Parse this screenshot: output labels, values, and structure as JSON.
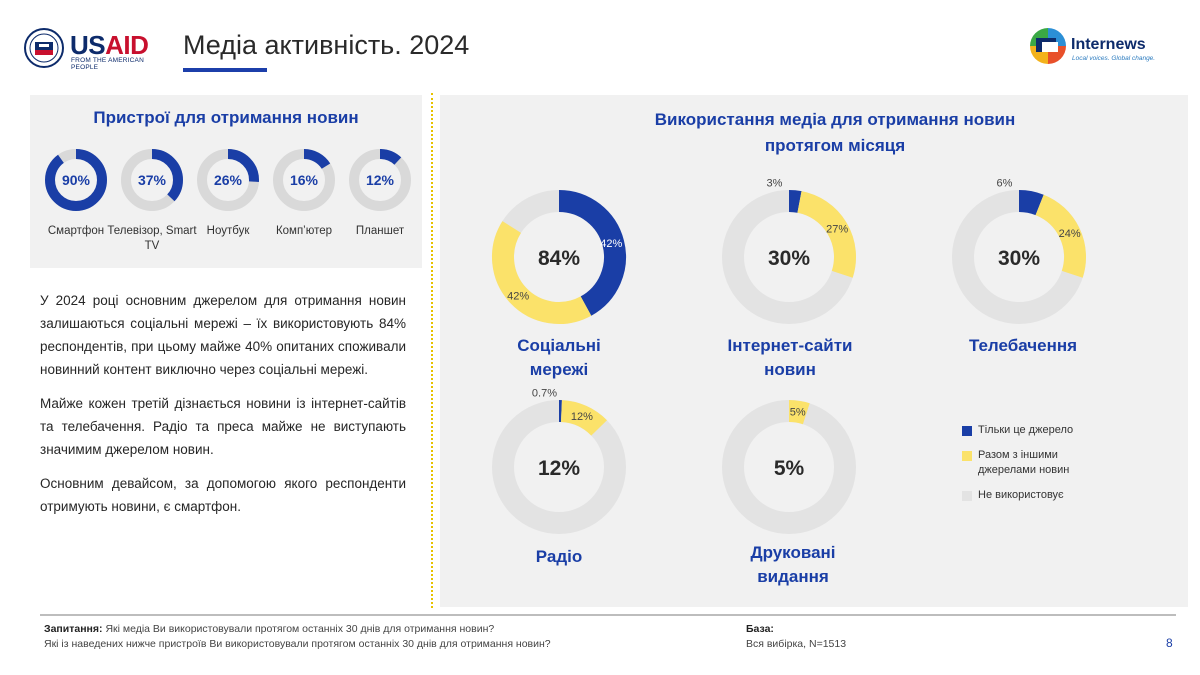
{
  "header": {
    "title": "Медіа активність. 2024",
    "usaid_logo": {
      "word_us": "US",
      "word_aid": "AID",
      "tagline": "FROM THE AMERICAN PEOPLE"
    },
    "internews_logo": {
      "word": "Internews",
      "tagline": "Local voices. Global change."
    }
  },
  "colors": {
    "accent_blue": "#1a3ea6",
    "accent_yellow": "#fbe26a",
    "unused_gray": "#e3e3e3",
    "divider_yellow": "#e7c200"
  },
  "devices": {
    "title": "Пристрої для отримання новин",
    "items": [
      {
        "label": "Смартфон",
        "value": 90,
        "display": "90%"
      },
      {
        "label": "Телевізор, Smart TV",
        "value": 37,
        "display": "37%"
      },
      {
        "label": "Ноутбук",
        "value": 26,
        "display": "26%"
      },
      {
        "label": "Комп’ютер",
        "value": 16,
        "display": "16%"
      },
      {
        "label": "Планшет",
        "value": 12,
        "display": "12%"
      }
    ]
  },
  "body_text": {
    "p1": "У 2024 році основним джерелом для отримання новин залишаються соціальні мережі – їх використовують 84% респондентів, при цьому майже 40% опитаних споживали новинний контент виключно через соціальні мережі.",
    "p2": "Майже кожен третій дізнається новини із інтернет-сайтів та телебачення. Радіо та преса майже не виступають значимим джерелом новин.",
    "p3": "Основним девайсом, за допомогою якого респонденти отримують новини, є смартфон."
  },
  "chart_data": [
    {
      "type": "pie",
      "title": "Пристрої для отримання новин",
      "categories": [
        "Смартфон",
        "Телевізор, Smart TV",
        "Ноутбук",
        "Комп’ютер",
        "Планшет"
      ],
      "values": [
        90,
        37,
        26,
        16,
        12
      ]
    },
    {
      "type": "pie",
      "title": "Використання медіа для отримання новин протягом місяця",
      "categories": [
        "Соціальні мережі",
        "Інтернет-сайти новин",
        "Телебачення",
        "Радіо",
        "Друковані видання"
      ],
      "series": [
        {
          "name": "Тільки це джерело",
          "values": [
            42,
            3,
            6,
            0.7,
            0
          ]
        },
        {
          "name": "Разом з іншими джерелами новин",
          "values": [
            42,
            27,
            24,
            12,
            5
          ]
        }
      ],
      "totals": [
        "84%",
        "30%",
        "30%",
        "12%",
        "5%"
      ],
      "legend_position": "right"
    }
  ],
  "media": {
    "title": "Використання медіа для отримання новин протягом місяця",
    "charts": [
      {
        "label": "Соціальні мережі",
        "total": "84%",
        "only_label": "42%",
        "with_label": "42%"
      },
      {
        "label": "Інтернет-сайти новин",
        "total": "30%",
        "only_label": "3%",
        "with_label": "27%"
      },
      {
        "label": "Телебачення",
        "total": "30%",
        "only_label": "6%",
        "with_label": "24%"
      },
      {
        "label": "Радіо",
        "total": "12%",
        "only_label": "0.7%",
        "with_label": "12%"
      },
      {
        "label": "Друковані видання",
        "total": "5%",
        "only_label": "",
        "with_label": "5%"
      }
    ],
    "legend": [
      {
        "label": "Тільки це джерело",
        "color": "#1a3ea6"
      },
      {
        "label": "Разом з іншими джерелами новин",
        "color": "#fbe26a"
      },
      {
        "label": "Не використовує",
        "color": "#e3e3e3"
      }
    ]
  },
  "footer": {
    "question_label": "Запитання:",
    "question_1": "Які медіа Ви використовували протягом останніх 30 днів для отримання новин?",
    "question_2": "Які із наведених нижче пристроїв Ви використовували протягом останніх 30 днів для отримання новин?",
    "base_label": "База:",
    "base_text": "Вся вибірка,  N=1513",
    "page_number": "8"
  }
}
